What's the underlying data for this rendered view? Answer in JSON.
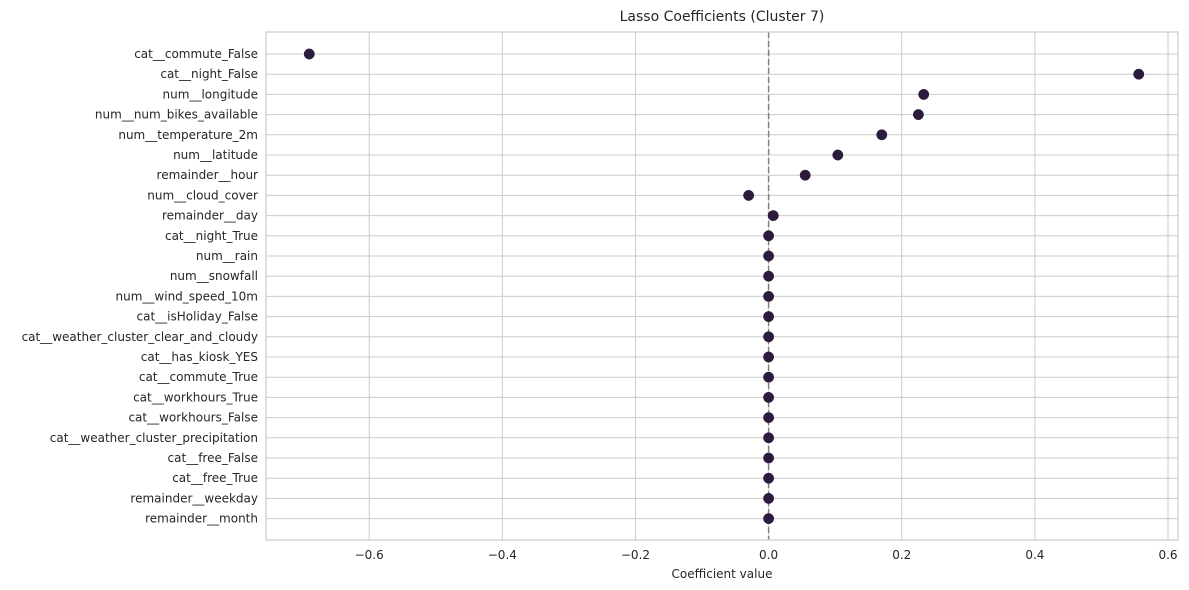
{
  "chart_data": {
    "type": "scatter",
    "title": "Lasso Coefficients (Cluster 7)",
    "xlabel": "Coefficient value",
    "ylabel": "",
    "xlim": [
      -0.755,
      0.615
    ],
    "xticks": [
      -0.6,
      -0.4,
      -0.2,
      0.0,
      0.2,
      0.4,
      0.6
    ],
    "xtick_labels": [
      "−0.6",
      "−0.4",
      "−0.2",
      "0.0",
      "0.2",
      "0.4",
      "0.6"
    ],
    "grid": true,
    "reference_line": 0,
    "marker_color": "#2d1b3e",
    "features": [
      "cat__commute_False",
      "cat__night_False",
      "num__longitude",
      "num__num_bikes_available",
      "num__temperature_2m",
      "num__latitude",
      "remainder__hour",
      "num__cloud_cover",
      "remainder__day",
      "cat__night_True",
      "num__rain",
      "num__snowfall",
      "num__wind_speed_10m",
      "cat__isHoliday_False",
      "cat__weather_cluster_clear_and_cloudy",
      "cat__has_kiosk_YES",
      "cat__commute_True",
      "cat__workhours_True",
      "cat__workhours_False",
      "cat__weather_cluster_precipitation",
      "cat__free_False",
      "cat__free_True",
      "remainder__weekday",
      "remainder__month"
    ],
    "values": [
      -0.69,
      0.556,
      0.233,
      0.225,
      0.17,
      0.104,
      0.055,
      -0.03,
      0.007,
      0,
      0,
      0,
      0,
      0,
      0,
      0,
      0,
      0,
      0,
      0,
      0,
      0,
      0,
      0
    ]
  }
}
